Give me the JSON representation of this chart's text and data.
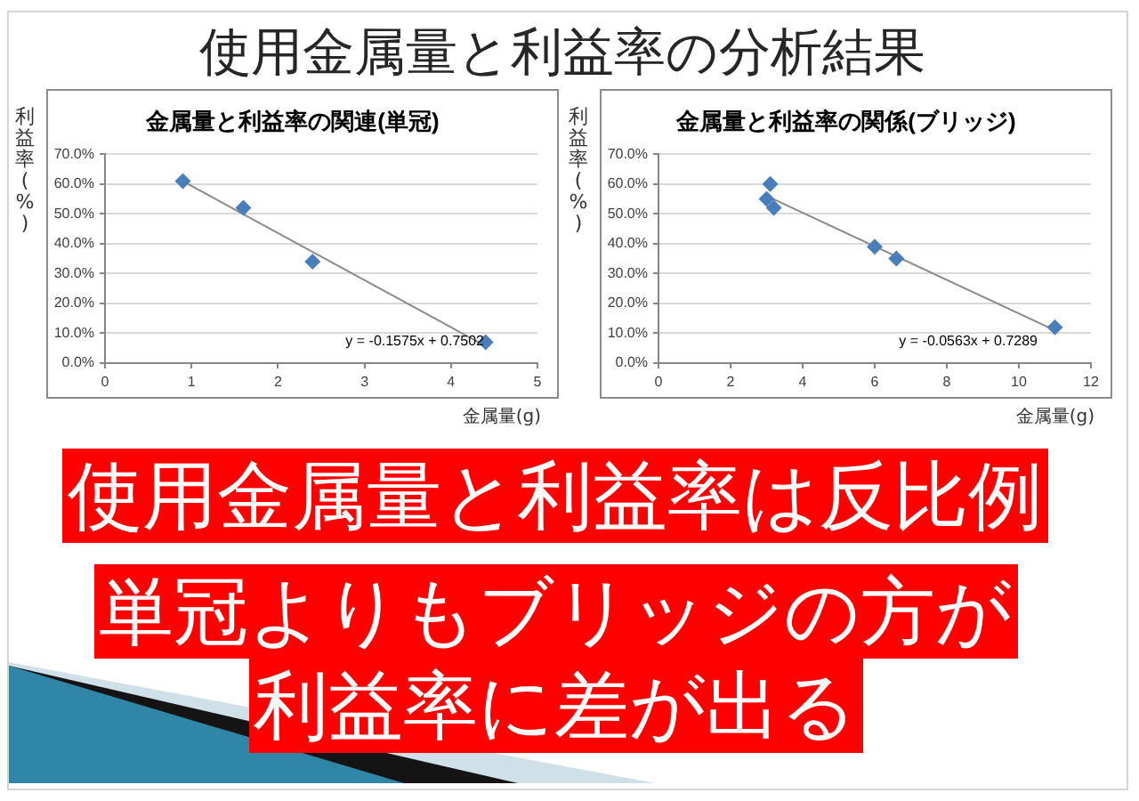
{
  "chart_data": [
    {
      "type": "other",
      "title": "使用金属量と利益率の分析結果"
    },
    {
      "type": "scatter",
      "title": "金属量と利益率の関連(単冠)",
      "xlabel": "金属量(g)",
      "ylabel": "利益率(%)",
      "marker": "diamond",
      "grid": "y",
      "series": [
        {
          "type": "scatter",
          "color": "#4a7ebb",
          "x": [
            0.9,
            1.6,
            2.4,
            4.4
          ],
          "values": [
            61,
            52,
            34,
            7
          ]
        },
        {
          "type": "line",
          "color": "#8a8a8a",
          "marker": "none",
          "x": [
            0.9,
            4.4
          ],
          "values": [
            60.9,
            5.7
          ]
        }
      ],
      "xlim": [
        0,
        5
      ],
      "xticks": [
        0,
        1,
        2,
        3,
        4,
        5
      ],
      "ylim": [
        0,
        70
      ],
      "yticks": [
        {
          "value": 0,
          "label": "0.0%"
        },
        {
          "value": 10,
          "label": "10.0%"
        },
        {
          "value": 20,
          "label": "20.0%"
        },
        {
          "value": 30,
          "label": "30.0%"
        },
        {
          "value": 40,
          "label": "40.0%"
        },
        {
          "value": 50,
          "label": "50.0%"
        },
        {
          "value": 60,
          "label": "60.0%"
        },
        {
          "value": 70,
          "label": "70.0%"
        }
      ],
      "annotations": [
        "y = -0.1575x + 0.7502"
      ]
    },
    {
      "type": "scatter",
      "title": "金属量と利益率の関係(ブリッジ)",
      "xlabel": "金属量(g)",
      "ylabel": "利益率(%)",
      "marker": "diamond",
      "grid": "y",
      "series": [
        {
          "type": "scatter",
          "color": "#4a7ebb",
          "x": [
            3.1,
            3.0,
            3.2,
            6.0,
            6.6,
            11.0
          ],
          "values": [
            60,
            55,
            52,
            39,
            35,
            12
          ]
        },
        {
          "type": "line",
          "color": "#8a8a8a",
          "marker": "none",
          "x": [
            3.0,
            11.0
          ],
          "values": [
            56.0,
            11.0
          ]
        }
      ],
      "xlim": [
        0,
        12
      ],
      "xticks": [
        0,
        2,
        4,
        6,
        8,
        10,
        12
      ],
      "ylim": [
        0,
        70
      ],
      "yticks": [
        {
          "value": 0,
          "label": "0.0%"
        },
        {
          "value": 10,
          "label": "10.0%"
        },
        {
          "value": 20,
          "label": "20.0%"
        },
        {
          "value": 30,
          "label": "30.0%"
        },
        {
          "value": 40,
          "label": "40.0%"
        },
        {
          "value": 50,
          "label": "50.0%"
        },
        {
          "value": 60,
          "label": "60.0%"
        },
        {
          "value": 70,
          "label": "70.0%"
        }
      ],
      "annotations": [
        "y = -0.0563x + 0.7289"
      ]
    },
    {
      "type": "other",
      "annotations": [
        "使用金属量と利益率は反比例",
        "単冠よりもブリッジの方が",
        "利益率に差が出る"
      ]
    }
  ]
}
